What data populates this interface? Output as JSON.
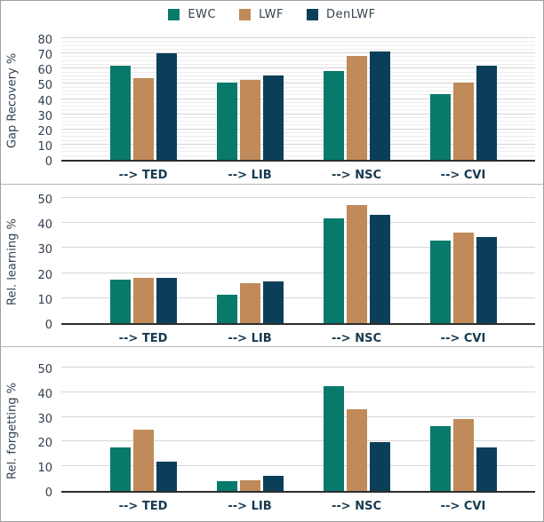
{
  "legend": {
    "items": [
      {
        "label": "EWC",
        "color": "#077a6b"
      },
      {
        "label": "LWF",
        "color": "#c08a5a"
      },
      {
        "label": "DenLWF",
        "color": "#0b3e58"
      }
    ]
  },
  "colors": {
    "ewc": "#077a6b",
    "lwf": "#c08a5a",
    "denlwf": "#0b3e58",
    "grid_major": "#d6d6d6",
    "grid_minor": "#ececec",
    "axis_line": "#2d2d2d",
    "tick_text": "#2f3e4d",
    "xlabel_text": "#16394f"
  },
  "chart_data": [
    {
      "type": "bar",
      "title": "",
      "ylabel": "Gap Recovery %",
      "xlabel": "",
      "ylim": [
        0,
        80
      ],
      "yticks": [
        0,
        10,
        20,
        30,
        40,
        50,
        60,
        70,
        80
      ],
      "minor_grid_step": 2.5,
      "grid": true,
      "legend_position": "top-center",
      "categories": [
        "--> TED",
        "--> LIB",
        "--> NSC",
        "--> CVI"
      ],
      "series": [
        {
          "name": "EWC",
          "color": "#077a6b",
          "values": [
            62,
            51,
            58.5,
            43.5
          ]
        },
        {
          "name": "LWF",
          "color": "#c08a5a",
          "values": [
            53.5,
            52.5,
            68.5,
            51
          ]
        },
        {
          "name": "DenLWF",
          "color": "#0b3e58",
          "values": [
            70,
            55.5,
            71,
            62
          ]
        }
      ]
    },
    {
      "type": "bar",
      "title": "",
      "ylabel": "Rel. learning %",
      "xlabel": "",
      "ylim": [
        0,
        50
      ],
      "yticks": [
        0,
        10,
        20,
        30,
        40,
        50
      ],
      "minor_grid_step": 0,
      "grid": true,
      "legend_position": "none",
      "categories": [
        "--> TED",
        "--> LIB",
        "--> NSC",
        "--> CVI"
      ],
      "series": [
        {
          "name": "EWC",
          "color": "#077a6b",
          "values": [
            17.5,
            11.5,
            42,
            33
          ]
        },
        {
          "name": "LWF",
          "color": "#c08a5a",
          "values": [
            18,
            15.9,
            47,
            36
          ]
        },
        {
          "name": "DenLWF",
          "color": "#0b3e58",
          "values": [
            18,
            16.5,
            43.2,
            34.5
          ]
        }
      ]
    },
    {
      "type": "bar",
      "title": "",
      "ylabel": "Rel. forgetting %",
      "xlabel": "",
      "ylim": [
        0,
        50
      ],
      "yticks": [
        0,
        10,
        20,
        30,
        40,
        50
      ],
      "minor_grid_step": 0,
      "grid": true,
      "legend_position": "none",
      "categories": [
        "--> TED",
        "--> LIB",
        "--> NSC",
        "--> CVI"
      ],
      "series": [
        {
          "name": "EWC",
          "color": "#077a6b",
          "values": [
            17.5,
            4,
            42.3,
            26.3
          ]
        },
        {
          "name": "LWF",
          "color": "#c08a5a",
          "values": [
            24.8,
            4.4,
            33.2,
            29.3
          ]
        },
        {
          "name": "DenLWF",
          "color": "#0b3e58",
          "values": [
            12,
            6.3,
            19.9,
            17.5
          ]
        }
      ]
    }
  ]
}
